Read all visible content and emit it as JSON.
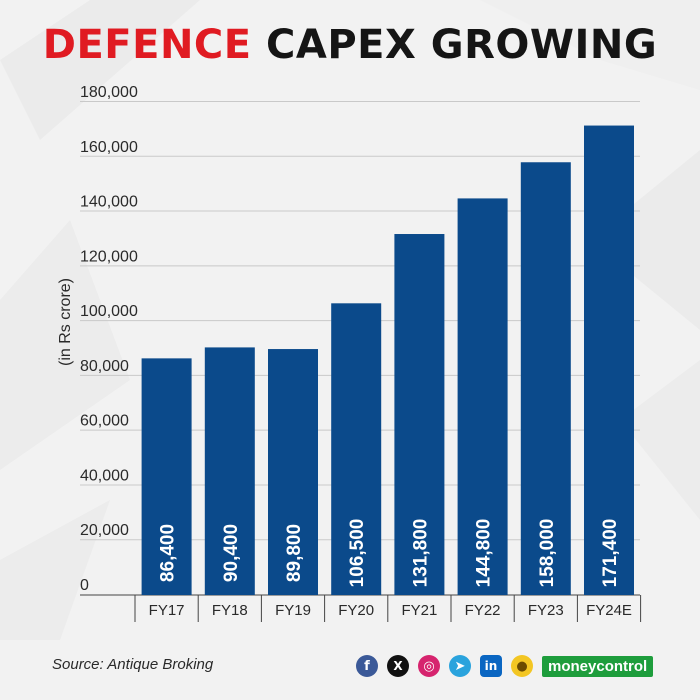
{
  "title": {
    "highlight": "DEFENCE",
    "rest": "CAPEX GROWING"
  },
  "chart_data": {
    "type": "bar",
    "title": "DEFENCE CAPEX GROWING",
    "ylabel": "(in Rs crore)",
    "xlabel": "",
    "categories": [
      "FY17",
      "FY18",
      "FY19",
      "FY20",
      "FY21",
      "FY22",
      "FY23",
      "FY24E"
    ],
    "values": [
      86400,
      90400,
      89800,
      106500,
      131800,
      144800,
      158000,
      171400
    ],
    "value_labels": [
      "86,400",
      "90,400",
      "89,800",
      "106,500",
      "131,800",
      "144,800",
      "158,000",
      "171,400"
    ],
    "yticks": [
      0,
      20000,
      40000,
      60000,
      80000,
      100000,
      120000,
      140000,
      160000,
      180000
    ],
    "ytick_labels": [
      "0",
      "20,000",
      "40,000",
      "60,000",
      "80,000",
      "100,000",
      "120,000",
      "140,000",
      "160,000",
      "180,000"
    ],
    "ylim": [
      0,
      180000
    ],
    "grid": true,
    "bar_color": "#0b4a8b",
    "highlight_color": "#e01b22"
  },
  "footer": {
    "source": "Source: Antique Broking",
    "brand": "moneycontrol",
    "social_icons": [
      "facebook-icon",
      "x-icon",
      "instagram-icon",
      "telegram-icon",
      "linkedin-icon",
      "koo-icon"
    ]
  }
}
